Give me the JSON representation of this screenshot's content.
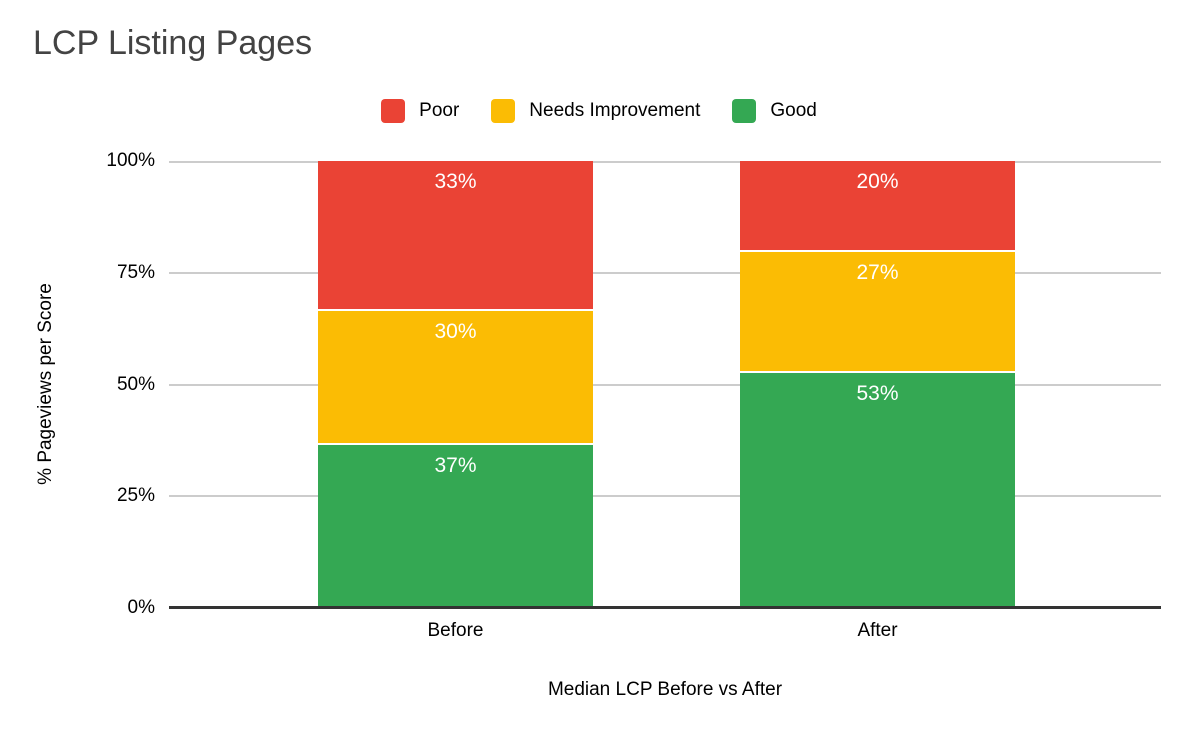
{
  "chart_data": {
    "type": "bar",
    "stacked": true,
    "stacked_mode": "percent",
    "title": "LCP Listing Pages",
    "xlabel": "Median LCP Before vs After",
    "ylabel": "% Pageviews per Score",
    "categories": [
      "Before",
      "After"
    ],
    "series": [
      {
        "name": "Poor",
        "color": "#EA4335",
        "values": [
          33,
          20
        ]
      },
      {
        "name": "Needs Improvement",
        "color": "#FBBC04",
        "values": [
          30,
          27
        ]
      },
      {
        "name": "Good",
        "color": "#34A853",
        "values": [
          37,
          53
        ]
      }
    ],
    "ylim": [
      0,
      100
    ],
    "yticks": [
      "0%",
      "25%",
      "50%",
      "75%",
      "100%"
    ],
    "ytick_values": [
      0,
      25,
      50,
      75,
      100
    ],
    "grid": true,
    "legend_position": "top",
    "data_label_format": "{value}%",
    "colors": {
      "title_text": "#434343",
      "tick_text": "#000000",
      "data_label_text": "#ffffff",
      "gridline": "#cccccc",
      "axis_line": "#333333",
      "background": "#ffffff"
    }
  }
}
